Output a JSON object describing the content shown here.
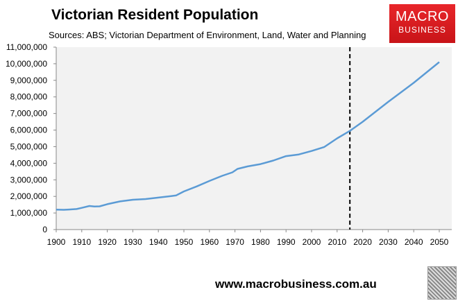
{
  "chart_data": {
    "type": "line",
    "title": "Victorian Resident Population",
    "subtitle": "Sources: ABS; Victorian Department of Environment, Land, Water and Planning",
    "xlabel": "",
    "ylabel": "",
    "xlim": [
      1900,
      2055
    ],
    "ylim": [
      0,
      11000000
    ],
    "x_ticks": [
      1900,
      1910,
      1920,
      1930,
      1940,
      1950,
      1960,
      1970,
      1980,
      1990,
      2000,
      2010,
      2020,
      2030,
      2040,
      2050
    ],
    "y_ticks": [
      "0",
      "1,000,000",
      "2,000,000",
      "3,000,000",
      "4,000,000",
      "5,000,000",
      "6,000,000",
      "7,000,000",
      "8,000,000",
      "9,000,000",
      "10,000,000",
      "11,000,000"
    ],
    "grid": false,
    "series": [
      {
        "color": "#5b9bd5",
        "x": [
          1900,
          1903,
          1905,
          1908,
          1910,
          1913,
          1915,
          1917,
          1920,
          1925,
          1930,
          1935,
          1940,
          1945,
          1947,
          1950,
          1955,
          1960,
          1965,
          1969,
          1971,
          1975,
          1980,
          1985,
          1990,
          1995,
          2000,
          2005,
          2010,
          2015,
          2020,
          2030,
          2040,
          2050
        ],
        "y": [
          1200000,
          1190000,
          1210000,
          1240000,
          1310000,
          1420000,
          1390000,
          1400000,
          1530000,
          1700000,
          1800000,
          1840000,
          1930000,
          2020000,
          2060000,
          2300000,
          2600000,
          2930000,
          3240000,
          3450000,
          3660000,
          3810000,
          3950000,
          4160000,
          4430000,
          4530000,
          4740000,
          4980000,
          5500000,
          5950000,
          6500000,
          7700000,
          8850000,
          10100000
        ]
      }
    ],
    "annotations": [
      {
        "type": "vertical-dashed-line",
        "x": 2015,
        "color": "#000000"
      }
    ],
    "background": "#f2f2f2"
  },
  "logo": {
    "line1": "MACRO",
    "line2": "BUSINESS",
    "color": "#e0201f"
  },
  "footer": {
    "url": "www.macrobusiness.com.au"
  }
}
